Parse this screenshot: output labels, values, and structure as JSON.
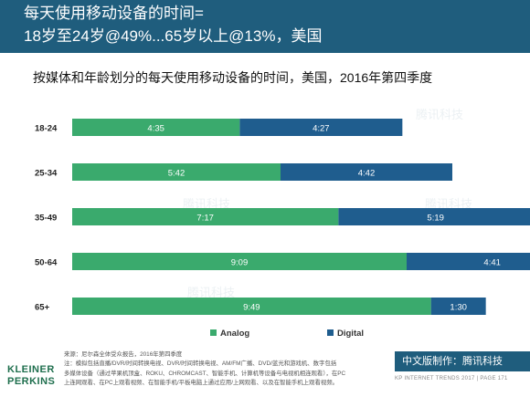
{
  "header": {
    "title_line1": "每天使用移动设备的时间=",
    "title_line2": "18岁至24岁@49%...65岁以上@13%，美国"
  },
  "subtitle": "按媒体和年龄划分的每天使用移动设备的时间，美国，2016年第四季度",
  "watermark": "腾讯科技",
  "colors": {
    "analog": "#3aaa6d",
    "digital": "#1f5d8e",
    "header": "#1f5d7d"
  },
  "chart_data": {
    "type": "bar",
    "orientation": "horizontal",
    "stacked": true,
    "categories": [
      "18-24",
      "25-34",
      "35-49",
      "50-64",
      "65+"
    ],
    "series": [
      {
        "name": "Analog",
        "values": [
          275,
          342,
          437,
          549,
          589
        ],
        "labels": [
          "4:35",
          "5:42",
          "7:17",
          "9:09",
          "9:49"
        ]
      },
      {
        "name": "Digital",
        "values": [
          267,
          282,
          319,
          281,
          90
        ],
        "labels": [
          "4:27",
          "4:42",
          "5:19",
          "4:41",
          "1:30"
        ]
      }
    ],
    "unit": "minutes",
    "xlim": [
      0,
      900
    ],
    "legend_position": "bottom",
    "grid": false
  },
  "footer": {
    "notes": [
      "来源：尼尔森全体受众报告，2016年第四季度",
      "注：模拟包括直播/DVR/时间转换电视、DVR/时间转换电视、AM/FM广播、DVD/蓝光和游戏机、数字包括",
      "多媒体设备（通过苹果机顶盒、ROKU、CHROMCAST、智能手机、计算机等设备与电视机相连观看），在PC",
      "上连网观看、在PC上观看视频、在智能手机/平板电脑上通过应用/上网观看、以及在智能手机上观看视频。"
    ],
    "logo_line1": "KLEINER",
    "logo_line2": "PERKINS",
    "badge": "中文版制作：腾讯科技",
    "page_label": "KP INTERNET TRENDS 2017  |  PAGE 171"
  }
}
